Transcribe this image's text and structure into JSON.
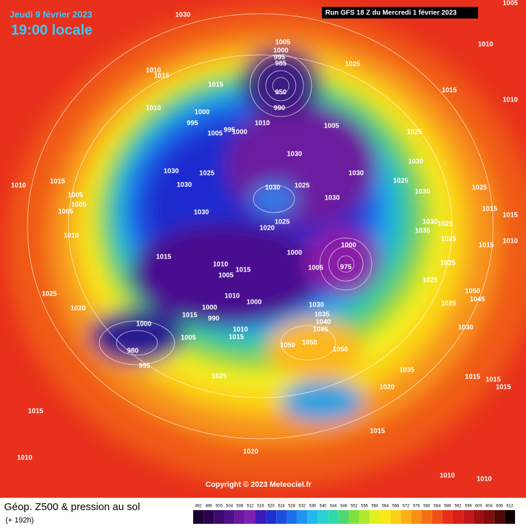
{
  "header": {
    "date": "Jeudi 9 février 2023",
    "time": "19:00 locale",
    "run": "Run GFS 18 Z du Mercredi 1 février 2023"
  },
  "copyright": "Copyright © 2023 Meteociel.fr",
  "footer": {
    "title": "Géop. Z500 & pression au sol",
    "lead": "(+ 192h)"
  },
  "scale": {
    "values": [
      492,
      496,
      500,
      504,
      508,
      512,
      516,
      520,
      524,
      528,
      532,
      536,
      540,
      544,
      548,
      552,
      556,
      560,
      564,
      568,
      572,
      576,
      580,
      584,
      588,
      592,
      596,
      600,
      604,
      608,
      612
    ]
  },
  "pressure_labels": [
    1030,
    1005,
    1000,
    995,
    985,
    950,
    990,
    1025,
    1010,
    1005,
    1015,
    1010,
    1010,
    1015,
    1015,
    1010,
    1000,
    995,
    1005,
    995,
    1000,
    1010,
    1005,
    1025,
    1030,
    1030,
    1030,
    1025,
    1030,
    1025,
    1015,
    1015,
    1030,
    1025,
    1035,
    1025,
    1015,
    1010,
    1025,
    1025,
    1050,
    1045,
    1025,
    1030,
    1010,
    1015,
    1005,
    1005,
    1005,
    1010,
    1025,
    1020,
    1030,
    1030,
    1025,
    1030,
    1030,
    1025,
    1030,
    1025,
    1020,
    1015,
    1010,
    1005,
    1015,
    1010,
    1000,
    1000,
    1015,
    990,
    1010,
    1015,
    1005,
    1000,
    980,
    995,
    1000,
    1005,
    1000,
    975,
    1030,
    1035,
    1040,
    1045,
    1050,
    1050,
    1050,
    1035,
    1020,
    1015,
    1015,
    1015,
    1015,
    1025,
    1015,
    1010,
    1020,
    1010,
    1010
  ]
}
